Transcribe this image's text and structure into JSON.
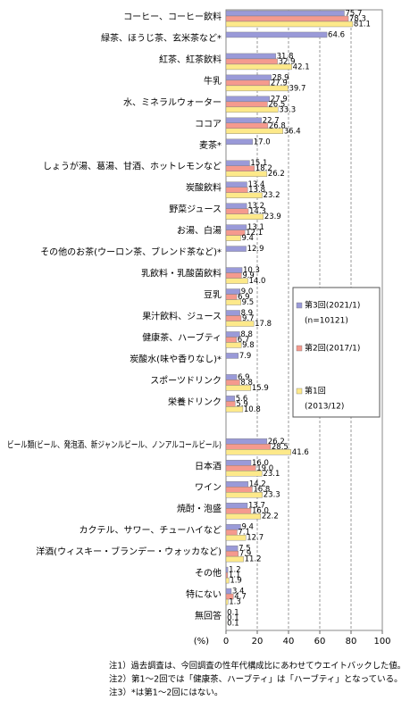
{
  "chart_data": {
    "type": "hbar",
    "categories": [
      "コーヒー、コーヒー飲料",
      "緑茶、ほうじ茶、玄米茶など*",
      "紅茶、紅茶飲料",
      "牛乳",
      "水、ミネラルウォーター",
      "ココア",
      "麦茶*",
      "しょうが湯、葛湯、甘酒、ホットレモンなど",
      "炭酸飲料",
      "野菜ジュース",
      "お湯、白湯",
      "その他のお茶(ウーロン茶、ブレンド茶など)*",
      "乳飲料・乳酸菌飲料",
      "豆乳",
      "果汁飲料、ジュース",
      "健康茶、ハーブティ",
      "炭酸水(味や香りなし)*",
      "スポーツドリンク",
      "栄養ドリンク",
      null,
      "ビール類(ビール、発泡酒、新ジャンルビール、ノンアルコールビール)",
      "日本酒",
      "ワイン",
      "焼酎・泡盛",
      "カクテル、サワー、チューハイなど",
      "洋酒(ウィスキー・ブランデー・ウォッカなど)",
      "その他",
      "特にない",
      "無回答"
    ],
    "series": [
      {
        "name": "第3回(2021/1)",
        "note": "(n=10121)",
        "color": "#9a9ad8",
        "values": [
          75.7,
          64.6,
          31.8,
          28.9,
          27.9,
          22.7,
          17.0,
          15.1,
          13.4,
          13.2,
          13.1,
          12.9,
          10.3,
          9.0,
          8.9,
          8.8,
          7.9,
          6.9,
          5.6,
          null,
          26.2,
          16.0,
          14.2,
          13.7,
          9.4,
          7.5,
          1.2,
          3.4,
          0.1
        ],
        "value_labels": [
          "75.7",
          "64.6",
          "31.8",
          "28.9",
          "27.9",
          "22.7",
          "17.0",
          "15.1",
          "13.4",
          "13.2",
          "13.1",
          "12.9",
          "10.3",
          "9.0",
          "8.9",
          "8.8",
          "7.9",
          "6.9",
          "5.6",
          null,
          "26.2",
          "16.0",
          "14.2",
          "13.7",
          "9.4",
          "7.5",
          "1.2",
          "3.4",
          "0.1"
        ]
      },
      {
        "name": "第2回(2017/1)",
        "color": "#f59a8e",
        "values": [
          78.3,
          null,
          32.9,
          27.9,
          26.5,
          26.8,
          null,
          18.2,
          13.8,
          14.3,
          12.1,
          null,
          9.9,
          6.9,
          9.7,
          6.7,
          null,
          8.8,
          5.9,
          null,
          28.5,
          19.0,
          16.8,
          16.0,
          7.1,
          7.9,
          1.1,
          4.7,
          0.1
        ],
        "value_labels": [
          "78.3",
          null,
          "32.9",
          "27.9",
          "26.5",
          "26.8",
          null,
          "18.2",
          "13.8",
          "14.3",
          "12.1",
          null,
          "9.9",
          "6.9",
          "9.7",
          "6.7",
          null,
          "8.8",
          "5.9",
          null,
          "28.5",
          "19.0",
          "16.8",
          "16.0",
          "7.1",
          "7.9",
          "1.1",
          "4.7",
          "0.1"
        ]
      },
      {
        "name": "第1回",
        "note": "(2013/12)",
        "color": "#fde98a",
        "values": [
          81.1,
          null,
          42.1,
          39.7,
          33.3,
          36.4,
          null,
          26.2,
          23.2,
          23.9,
          9.4,
          null,
          14.0,
          9.5,
          17.8,
          9.8,
          null,
          15.9,
          10.8,
          null,
          41.6,
          23.1,
          23.3,
          22.2,
          12.7,
          11.2,
          1.9,
          1.3,
          0.1
        ],
        "value_labels": [
          "81.1",
          null,
          "42.1",
          "39.7",
          "33.3",
          "36.4",
          null,
          "26.2",
          "23.2",
          "23.9",
          "9.4",
          null,
          "14.0",
          "9.5",
          "17.8",
          "9.8",
          null,
          "15.9",
          "10.8",
          null,
          "41.6",
          "23.1",
          "23.3",
          "22.2",
          "12.7",
          "11.2",
          "1.9",
          "1.3",
          "0.1"
        ]
      }
    ],
    "xlabel": "(%)",
    "xlim": [
      0,
      100
    ],
    "xticks": [
      0,
      20,
      40,
      60,
      80,
      100
    ],
    "grid": true,
    "notes": [
      "注1）過去調査は、今回調査の性年代構成比にあわせてウエイトバックした値。",
      "注2）第1～2回では「健康茶、ハーブティ」は「ハーブティ」となっている。",
      "注3）*は第1～2回にはない。"
    ]
  }
}
